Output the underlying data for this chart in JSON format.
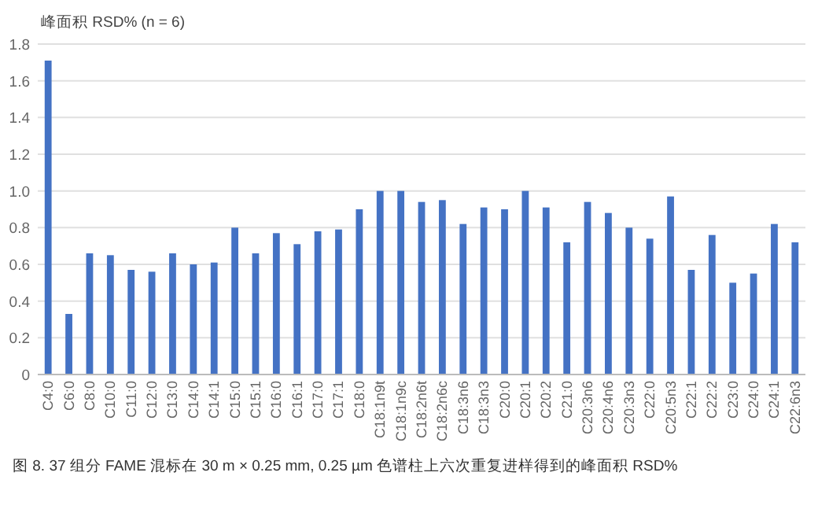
{
  "chart_data": {
    "type": "bar",
    "ylabel": "峰面积 RSD% (n = 6)",
    "categories": [
      "C4:0",
      "C6:0",
      "C8:0",
      "C10:0",
      "C11:0",
      "C12:0",
      "C13:0",
      "C14:0",
      "C14:1",
      "C15:0",
      "C15:1",
      "C16:0",
      "C16:1",
      "C17:0",
      "C17:1",
      "C18:0",
      "C18:1n9t",
      "C18:1n9c",
      "C18:2n6t",
      "C18:2n6c",
      "C18:3n6",
      "C18:3n3",
      "C20:0",
      "C20:1",
      "C20:2",
      "C21:0",
      "C20:3n6",
      "C20:4n6",
      "C20:3n3",
      "C22:0",
      "C20:5n3",
      "C22:1",
      "C22:2",
      "C23:0",
      "C24:0",
      "C24:1",
      "C22:6n3"
    ],
    "values": [
      1.71,
      0.33,
      0.66,
      0.65,
      0.57,
      0.56,
      0.66,
      0.6,
      0.61,
      0.8,
      0.66,
      0.77,
      0.71,
      0.78,
      0.79,
      0.9,
      1.0,
      1.0,
      0.94,
      0.95,
      0.82,
      0.91,
      0.9,
      1.0,
      0.91,
      0.72,
      0.94,
      0.88,
      0.8,
      0.74,
      0.97,
      0.57,
      0.76,
      0.5,
      0.55,
      0.82,
      0.72
    ],
    "color": "#4472c4",
    "ylim": [
      0,
      1.8
    ],
    "yticks": [
      0,
      {
        "value": 0.2,
        "label": "0.2"
      },
      {
        "value": 0.4,
        "label": "0.4"
      },
      {
        "value": 0.6,
        "label": "0.6"
      },
      {
        "value": 0.8,
        "label": "0.8"
      },
      {
        "value": 1.0,
        "label": "1.0"
      },
      {
        "value": 1.2,
        "label": "1.2"
      },
      {
        "value": 1.4,
        "label": "1.4"
      },
      {
        "value": 1.6,
        "label": "1.6"
      },
      {
        "value": 1.8,
        "label": "1.8"
      }
    ],
    "grid": "y",
    "annotations": [
      "图 8. 37 组分 FAME 混标在 30 m × 0.25 mm, 0.25 µm 色谱柱上六次重复进样得到的峰面积 RSD%"
    ]
  }
}
